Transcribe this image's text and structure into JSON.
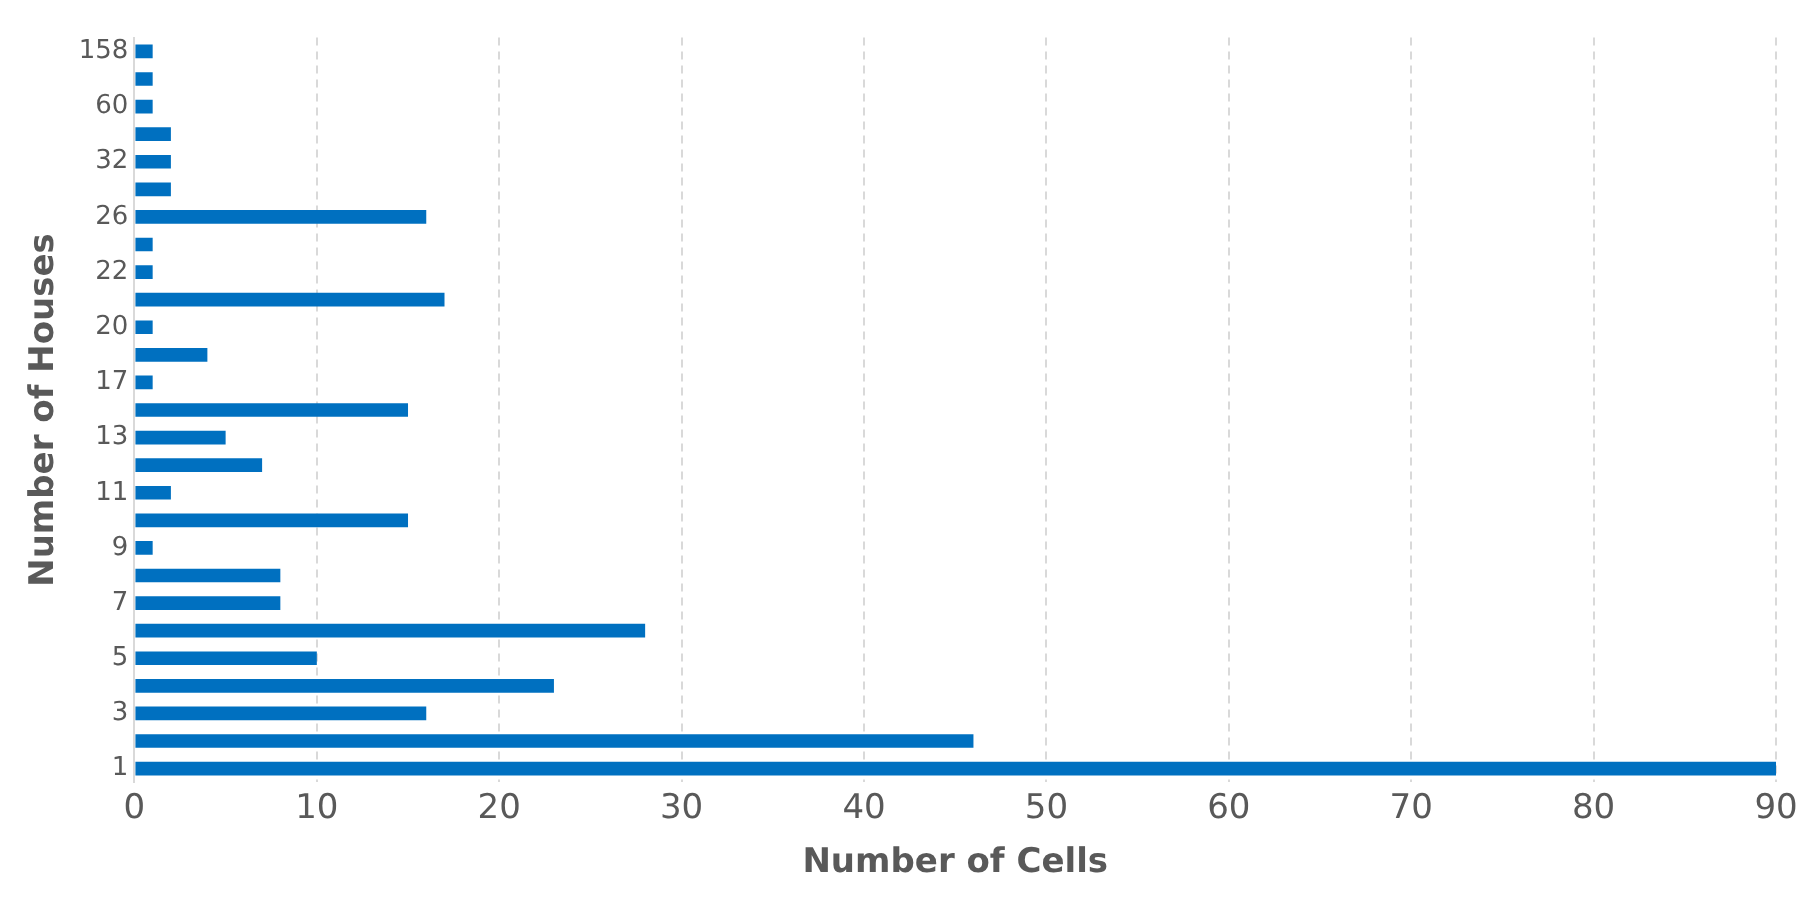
{
  "chart_data": {
    "type": "bar",
    "orientation": "horizontal",
    "xlabel": "Number of Cells",
    "ylabel": "Number of Houses",
    "categories": [
      "158",
      null,
      "60",
      null,
      "32",
      null,
      "26",
      null,
      "22",
      null,
      "20",
      null,
      "17",
      null,
      "13",
      null,
      "11",
      null,
      "9",
      null,
      "7",
      null,
      "5",
      null,
      "3",
      null,
      "1"
    ],
    "values": [
      1,
      1,
      1,
      2,
      2,
      2,
      16,
      1,
      1,
      17,
      1,
      4,
      1,
      15,
      5,
      7,
      2,
      15,
      1,
      8,
      8,
      28,
      10,
      23,
      16,
      46,
      90
    ],
    "color": "#0070c0",
    "xlim": [
      0,
      90
    ],
    "xticks": [
      0,
      10,
      20,
      30,
      40,
      50,
      60,
      70,
      80,
      90
    ],
    "grid": "x",
    "legend": false
  }
}
